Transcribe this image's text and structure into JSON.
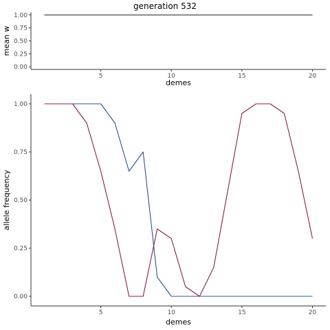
{
  "title": "generation 532",
  "chart_data": [
    {
      "type": "line",
      "xlabel": "demes",
      "ylabel": "mean w",
      "xlim": [
        0.05,
        20.95
      ],
      "ylim": [
        -0.05,
        1.05
      ],
      "x_ticks": [
        5,
        10,
        15,
        20
      ],
      "y_ticks": [
        0.0,
        0.25,
        0.5,
        0.75,
        1.0
      ],
      "y_tick_labels": [
        "0.00",
        "0.25",
        "0.50",
        "0.75",
        "1.00"
      ],
      "grid": false,
      "series": [
        {
          "color": "#333333",
          "x": [
            1,
            2,
            3,
            4,
            5,
            6,
            7,
            8,
            9,
            10,
            11,
            12,
            13,
            14,
            15,
            16,
            17,
            18,
            19,
            20
          ],
          "values": [
            1,
            1,
            1,
            1,
            1,
            1,
            1,
            1,
            1,
            1,
            1,
            1,
            1,
            1,
            1,
            1,
            1,
            1,
            1,
            1
          ]
        }
      ]
    },
    {
      "type": "line",
      "xlabel": "demes",
      "ylabel": "allele frequency",
      "xlim": [
        0.05,
        20.95
      ],
      "ylim": [
        -0.05,
        1.05
      ],
      "x_ticks": [
        5,
        10,
        15,
        20
      ],
      "y_ticks": [
        0.0,
        0.25,
        0.5,
        0.75,
        1.0
      ],
      "y_tick_labels": [
        "0.00",
        "0.25",
        "0.50",
        "0.75",
        "1.00"
      ],
      "grid": false,
      "series": [
        {
          "color": "#2b4f9e",
          "x": [
            1,
            2,
            3,
            4,
            5,
            6,
            7,
            8,
            9,
            10,
            11,
            12,
            13,
            14,
            15,
            16,
            17,
            18,
            19,
            20
          ],
          "values": [
            1.0,
            1.0,
            1.0,
            1.0,
            1.0,
            0.9,
            0.65,
            0.75,
            0.1,
            0.0,
            0.0,
            0.0,
            0.0,
            0.0,
            0.0,
            0.0,
            0.0,
            0.0,
            0.0,
            0.0
          ]
        },
        {
          "color": "#8e1a4f",
          "x": [
            1,
            2,
            3,
            4,
            5,
            6,
            7,
            8,
            9,
            10,
            11,
            12,
            13,
            14,
            15,
            16,
            17,
            18,
            19,
            20
          ],
          "values": [
            1.0,
            1.0,
            1.0,
            0.9,
            0.65,
            0.35,
            0.0,
            0.0,
            0.35,
            0.3,
            0.05,
            0.0,
            0.15,
            0.55,
            0.95,
            1.0,
            1.0,
            0.95,
            0.65,
            0.3
          ]
        }
      ]
    }
  ]
}
